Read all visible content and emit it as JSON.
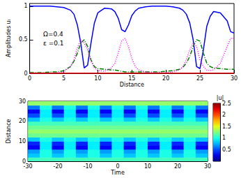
{
  "chart_data": [
    {
      "type": "line",
      "x_label": "Distance",
      "y_label": "Amplitudes uᵢ",
      "annotations": [
        "Ω=0.4",
        "ε =0.1"
      ],
      "x": [
        0,
        1,
        2,
        3,
        4,
        5,
        6,
        6.5,
        7,
        7.5,
        8,
        8.5,
        9,
        9.5,
        10,
        11,
        12,
        12.5,
        13,
        13.5,
        14,
        14.5,
        15,
        15.5,
        16,
        17,
        18,
        19,
        20,
        21,
        22,
        22.5,
        23,
        23.5,
        24,
        24.5,
        25,
        25.5,
        26,
        26.5,
        27,
        28,
        29,
        29.5,
        30
      ],
      "series": [
        {
          "color": "#0000ff",
          "line_style": "solid",
          "values": [
            1,
            1,
            1,
            1,
            0.99,
            0.98,
            0.94,
            0.88,
            0.72,
            0.45,
            0.08,
            0.12,
            0.45,
            0.75,
            0.9,
            0.97,
            0.96,
            0.92,
            0.82,
            0.65,
            0.62,
            0.72,
            0.86,
            0.93,
            0.97,
            0.99,
            1,
            1,
            1,
            0.99,
            0.97,
            0.94,
            0.88,
            0.75,
            0.5,
            0.1,
            0.07,
            0.35,
            0.7,
            0.85,
            0.92,
            0.9,
            0.78,
            0.62,
            0.6
          ]
        },
        {
          "color": "#008000",
          "line_style": "dashdot",
          "values": [
            0.01,
            0.01,
            0.01,
            0.02,
            0.02,
            0.04,
            0.1,
            0.18,
            0.3,
            0.45,
            0.5,
            0.4,
            0.2,
            0.1,
            0.07,
            0.06,
            0.05,
            0.05,
            0.04,
            0.03,
            0.02,
            0.02,
            0.02,
            0.02,
            0.02,
            0.02,
            0.02,
            0.02,
            0.03,
            0.04,
            0.06,
            0.09,
            0.15,
            0.25,
            0.4,
            0.5,
            0.48,
            0.3,
            0.15,
            0.1,
            0.08,
            0.07,
            0.06,
            0.06,
            0.06
          ]
        },
        {
          "color": "#ff00ff",
          "line_style": "dotted",
          "values": [
            0,
            0,
            0,
            0,
            0.01,
            0.02,
            0.1,
            0.2,
            0.38,
            0.5,
            0.45,
            0.35,
            0.18,
            0.08,
            0.04,
            0.03,
            0.08,
            0.15,
            0.3,
            0.48,
            0.52,
            0.4,
            0.22,
            0.1,
            0.05,
            0.02,
            0.01,
            0.01,
            0.01,
            0.02,
            0.05,
            0.1,
            0.2,
            0.35,
            0.45,
            0.4,
            0.2,
            0.1,
            0.05,
            0.04,
            0.05,
            0.15,
            0.4,
            0.52,
            0.52
          ]
        },
        {
          "color": "#ff0000",
          "line_style": "solid",
          "values": [
            0,
            0,
            0,
            0,
            0,
            0,
            0,
            0,
            0,
            0,
            0,
            0,
            0,
            0,
            0,
            0,
            0,
            0,
            0,
            0,
            0,
            0,
            0,
            0,
            0,
            0,
            0,
            0,
            0,
            0,
            0,
            0,
            0,
            0,
            0,
            0,
            0,
            0,
            0,
            0,
            0,
            0,
            0,
            0,
            0
          ]
        }
      ],
      "xlim": [
        0,
        30
      ],
      "xticks": [
        0,
        5,
        10,
        15,
        20,
        25,
        30
      ],
      "ylim": [
        0,
        1.04
      ],
      "yticks": [
        0,
        0.5,
        1
      ]
    },
    {
      "type": "heatmap",
      "x_label": "Time",
      "y_label": "Distance",
      "x": [
        -28,
        -24,
        -20,
        -16,
        -12,
        -8,
        -4,
        0,
        4,
        8,
        12,
        16,
        20,
        24,
        28
      ],
      "y": [
        1,
        3,
        5,
        7,
        9,
        11,
        13,
        15,
        17,
        19,
        21,
        23,
        25,
        27,
        29
      ],
      "cells": [
        [
          1.1,
          1.1,
          1.1,
          1.1,
          1.1,
          1.1,
          1.1,
          1.1,
          1.1,
          1.1,
          1.1,
          1.1,
          1.1,
          1.1,
          1.1
        ],
        [
          0.8,
          1.0,
          0.8,
          1.0,
          0.8,
          1.0,
          0.8,
          1.0,
          0.8,
          1.0,
          0.8,
          1.0,
          0.8,
          1.0,
          0.8
        ],
        [
          0.7,
          1.0,
          0.7,
          1.0,
          0.7,
          1.0,
          0.7,
          1.0,
          0.7,
          1.0,
          0.7,
          1.0,
          0.7,
          1.0,
          0.7
        ],
        [
          0.3,
          0.9,
          0.3,
          0.9,
          0.3,
          0.9,
          0.3,
          0.9,
          0.3,
          0.9,
          0.3,
          0.9,
          0.3,
          0.9,
          0.3
        ],
        [
          0.4,
          0.9,
          0.4,
          0.9,
          0.4,
          0.9,
          0.4,
          0.9,
          0.4,
          0.9,
          0.4,
          0.9,
          0.4,
          0.9,
          0.4
        ],
        [
          0.8,
          1.0,
          0.8,
          1.0,
          0.8,
          1.0,
          0.8,
          1.0,
          0.8,
          1.0,
          0.8,
          1.0,
          0.8,
          1.0,
          0.8
        ],
        [
          1.2,
          1.2,
          1.2,
          1.2,
          1.2,
          1.2,
          1.2,
          1.2,
          1.2,
          1.2,
          1.2,
          1.2,
          1.2,
          1.2,
          1.2
        ],
        [
          1.3,
          1.3,
          1.3,
          1.3,
          1.3,
          1.3,
          1.3,
          1.3,
          1.3,
          1.3,
          1.3,
          1.3,
          1.3,
          1.3,
          1.3
        ],
        [
          1.2,
          1.2,
          1.2,
          1.2,
          1.2,
          1.2,
          1.2,
          1.2,
          1.2,
          1.2,
          1.2,
          1.2,
          1.2,
          1.2,
          1.2
        ],
        [
          1.1,
          1.1,
          1.1,
          1.1,
          1.1,
          1.1,
          1.1,
          1.1,
          1.1,
          1.1,
          1.1,
          1.1,
          1.1,
          1.1,
          1.1
        ],
        [
          0.8,
          1.0,
          0.8,
          1.0,
          0.8,
          1.0,
          0.8,
          1.0,
          0.8,
          1.0,
          0.8,
          1.0,
          0.8,
          1.0,
          0.8
        ],
        [
          0.5,
          0.9,
          0.5,
          0.9,
          0.5,
          0.9,
          0.5,
          0.9,
          0.5,
          0.9,
          0.5,
          0.9,
          0.5,
          0.9,
          0.5
        ],
        [
          0.3,
          0.9,
          0.3,
          0.9,
          0.3,
          0.9,
          0.3,
          0.9,
          0.3,
          0.9,
          0.3,
          0.9,
          0.3,
          0.9,
          0.3
        ],
        [
          0.6,
          1.0,
          0.6,
          1.0,
          0.6,
          1.0,
          0.6,
          1.0,
          0.6,
          1.0,
          0.6,
          1.0,
          0.6,
          1.0,
          0.6
        ],
        [
          1.3,
          1.3,
          1.3,
          1.3,
          1.3,
          1.3,
          1.3,
          1.3,
          1.3,
          1.3,
          1.3,
          1.3,
          1.3,
          1.3,
          1.3
        ]
      ],
      "xlim": [
        -30,
        30
      ],
      "xticks": [
        -30,
        -20,
        -10,
        0,
        10,
        20,
        30
      ],
      "ylim": [
        0,
        30
      ],
      "yticks": [
        0,
        10,
        20,
        30
      ],
      "colorbar": {
        "label": "|u|",
        "lim": [
          0,
          2.5
        ],
        "ticks": [
          0.5,
          1,
          1.5,
          2,
          2.5
        ]
      }
    }
  ]
}
